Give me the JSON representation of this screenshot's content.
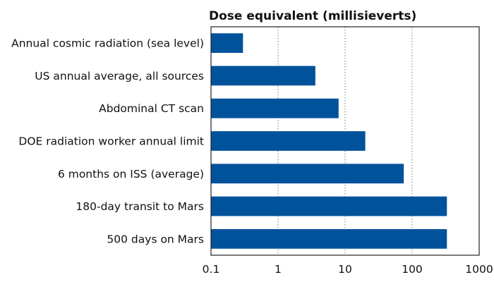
{
  "chart_data": {
    "type": "bar",
    "orientation": "horizontal",
    "title": "Dose equivalent (millisieverts)",
    "xlabel": "",
    "ylabel": "",
    "xscale": "log",
    "xlim": [
      0.1,
      1000
    ],
    "xticks": [
      "0.1",
      "1",
      "10",
      "100",
      "1000"
    ],
    "grid": "vertical dotted at major ticks",
    "legend": "none",
    "bar_color": "#00529b",
    "categories": [
      "Annual cosmic radiation (sea level)",
      "US annual average, all sources",
      "Abdominal CT scan",
      "DOE radiation worker annual limit",
      "6 months on ISS (average)",
      "180-day transit to Mars",
      "500 days on Mars"
    ],
    "values": [
      0.3,
      3.6,
      8,
      20,
      75,
      330,
      330
    ]
  }
}
